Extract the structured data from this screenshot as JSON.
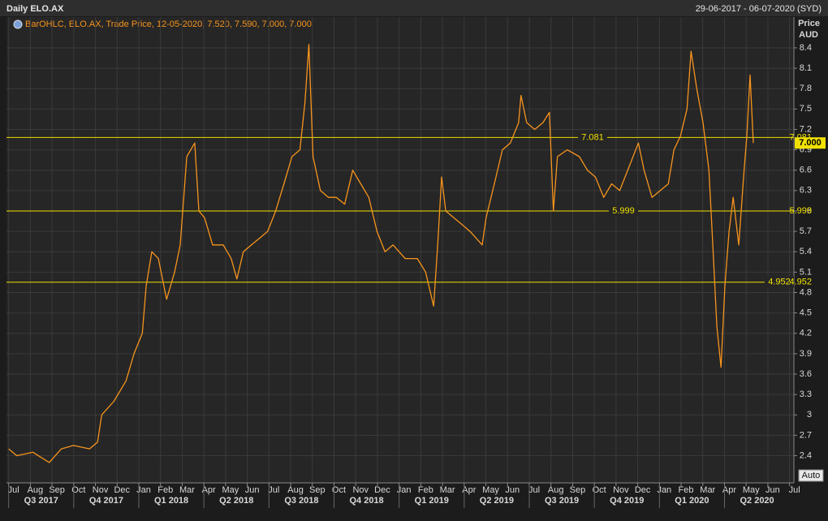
{
  "chart_data": {
    "type": "line",
    "title": "Daily ELO.AX",
    "date_range": "29-06-2017 - 06-07-2020 (SYD)",
    "legend": "BarOHLC, ELO.AX, Trade Price, 12-05-2020, 7.520, 7.590, 7.000, 7.000",
    "y_label": "Price",
    "y_unit": "AUD",
    "auto_button": "Auto",
    "grid": true,
    "series": [
      {
        "color": "#f7941d",
        "x": [
          0,
          0.37,
          1.12,
          1.87,
          2.43,
          2.99,
          3.73,
          4.1,
          4.29,
          4.85,
          5.41,
          5.78,
          6.16,
          6.34,
          6.6,
          6.9,
          7.28,
          7.65,
          7.91,
          8.21,
          8.58,
          8.77,
          9.03,
          9.4,
          9.89,
          10.26,
          10.52,
          10.82,
          11.19,
          11.57,
          11.94,
          12.31,
          12.69,
          13.06,
          13.43,
          13.66,
          13.84,
          14.03,
          14.37,
          14.74,
          15.11,
          15.49,
          15.86,
          16.23,
          16.6,
          16.98,
          17.35,
          17.72,
          18.28,
          18.84,
          19.22,
          19.59,
          19.78,
          19.96,
          20.15,
          20.52,
          20.9,
          21.27,
          21.83,
          22.01,
          22.39,
          22.76,
          23.13,
          23.51,
          23.62,
          23.88,
          24.25,
          24.63,
          24.93,
          25.11,
          25.3,
          25.75,
          26.31,
          26.68,
          27.05,
          27.43,
          27.8,
          28.17,
          28.54,
          29.03,
          29.29,
          29.66,
          30.04,
          30.41,
          30.67,
          30.97,
          31.27,
          31.46,
          31.72,
          32.01,
          32.28,
          32.46,
          32.65,
          32.84,
          33.02,
          33.21,
          33.4,
          33.66,
          33.88,
          34.03,
          34.18,
          34.33
        ],
        "values": [
          2.5,
          2.4,
          2.45,
          2.3,
          2.5,
          2.55,
          2.5,
          2.6,
          3.0,
          3.2,
          3.5,
          3.9,
          4.2,
          4.9,
          5.4,
          5.3,
          4.7,
          5.1,
          5.5,
          6.8,
          7.0,
          6.0,
          5.9,
          5.5,
          5.5,
          5.3,
          5.0,
          5.4,
          5.5,
          5.6,
          5.7,
          6.0,
          6.4,
          6.8,
          6.9,
          7.6,
          8.45,
          6.8,
          6.3,
          6.2,
          6.2,
          6.1,
          6.6,
          6.4,
          6.2,
          5.7,
          5.4,
          5.5,
          5.3,
          5.3,
          5.1,
          4.6,
          5.5,
          6.5,
          6.0,
          5.9,
          5.8,
          5.7,
          5.5,
          5.9,
          6.4,
          6.9,
          7.0,
          7.3,
          7.7,
          7.3,
          7.2,
          7.3,
          7.45,
          6.0,
          6.8,
          6.9,
          6.8,
          6.6,
          6.5,
          6.2,
          6.4,
          6.3,
          6.6,
          7.0,
          6.6,
          6.2,
          6.3,
          6.4,
          6.9,
          7.1,
          7.5,
          8.35,
          7.8,
          7.3,
          6.6,
          5.5,
          4.3,
          3.7,
          4.9,
          5.7,
          6.2,
          5.5,
          6.5,
          7.1,
          8.0,
          7.0
        ]
      }
    ],
    "hlines": [
      7.081,
      5.999,
      4.952
    ],
    "last_price": {
      "value": 7,
      "label": "7.000"
    },
    "ylim": [
      2.0,
      8.65
    ],
    "yticks": [
      2.4,
      2.7,
      3,
      3.3,
      3.6,
      3.9,
      4.2,
      4.5,
      4.8,
      5.1,
      5.4,
      5.7,
      6,
      6.3,
      6.6,
      6.9,
      7.2,
      7.5,
      7.8,
      8.1,
      8.4
    ],
    "xlim": [
      -0.1,
      36.2
    ],
    "xticks": [
      {
        "value": 0,
        "label": "Jul"
      },
      {
        "value": 1,
        "label": "Aug"
      },
      {
        "value": 2,
        "label": "Sep"
      },
      {
        "value": 3,
        "label": "Oct"
      },
      {
        "value": 4,
        "label": "Nov"
      },
      {
        "value": 5,
        "label": "Dec"
      },
      {
        "value": 6,
        "label": "Jan"
      },
      {
        "value": 7,
        "label": "Feb"
      },
      {
        "value": 8,
        "label": "Mar"
      },
      {
        "value": 9,
        "label": "Apr"
      },
      {
        "value": 10,
        "label": "May"
      },
      {
        "value": 11,
        "label": "Jun"
      },
      {
        "value": 12,
        "label": "Jul"
      },
      {
        "value": 13,
        "label": "Aug"
      },
      {
        "value": 14,
        "label": "Sep"
      },
      {
        "value": 15,
        "label": "Oct"
      },
      {
        "value": 16,
        "label": "Nov"
      },
      {
        "value": 17,
        "label": "Dec"
      },
      {
        "value": 18,
        "label": "Jan"
      },
      {
        "value": 19,
        "label": "Feb"
      },
      {
        "value": 20,
        "label": "Mar"
      },
      {
        "value": 21,
        "label": "Apr"
      },
      {
        "value": 22,
        "label": "May"
      },
      {
        "value": 23,
        "label": "Jun"
      },
      {
        "value": 24,
        "label": "Jul"
      },
      {
        "value": 25,
        "label": "Aug"
      },
      {
        "value": 26,
        "label": "Sep"
      },
      {
        "value": 27,
        "label": "Oct"
      },
      {
        "value": 28,
        "label": "Nov"
      },
      {
        "value": 29,
        "label": "Dec"
      },
      {
        "value": 30,
        "label": "Jan"
      },
      {
        "value": 31,
        "label": "Feb"
      },
      {
        "value": 32,
        "label": "Mar"
      },
      {
        "value": 33,
        "label": "Apr"
      },
      {
        "value": 34,
        "label": "May"
      },
      {
        "value": 35,
        "label": "Jun"
      },
      {
        "value": 36,
        "label": "Jul"
      }
    ],
    "quarters": [
      {
        "value": 0,
        "label": "Q3 2017"
      },
      {
        "value": 3,
        "label": "Q4 2017"
      },
      {
        "value": 6,
        "label": "Q1 2018"
      },
      {
        "value": 9,
        "label": "Q2 2018"
      },
      {
        "value": 12,
        "label": "Q3 2018"
      },
      {
        "value": 15,
        "label": "Q4 2018"
      },
      {
        "value": 18,
        "label": "Q1 2019"
      },
      {
        "value": 21,
        "label": "Q2 2019"
      },
      {
        "value": 24,
        "label": "Q3 2019"
      },
      {
        "value": 27,
        "label": "Q4 2019"
      },
      {
        "value": 30,
        "label": "Q1 2020"
      },
      {
        "value": 33,
        "label": "Q2 2020"
      }
    ]
  }
}
